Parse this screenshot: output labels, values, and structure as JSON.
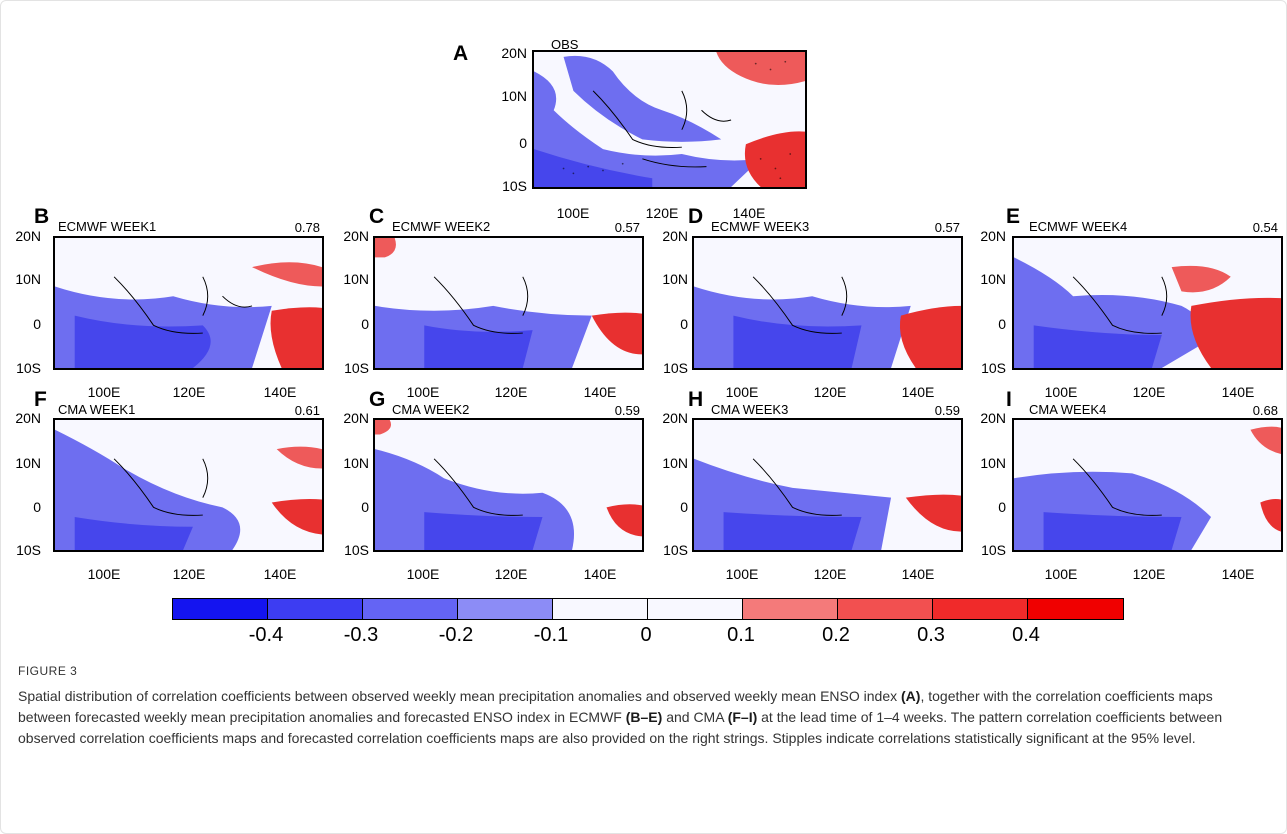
{
  "figure": {
    "label": "FIGURE 3",
    "caption": {
      "p1": "Spatial distribution of correlation coefficients between observed weekly mean precipitation anomalies and observed weekly mean ENSO index ",
      "b1": "(A)",
      "p2": ", together with the correlation coefficients maps between forecasted weekly mean precipitation anomalies and forecasted ENSO index in ECMWF ",
      "b2": "(B–E)",
      "p3": " and CMA ",
      "b3": "(F–I)",
      "p4": " at the lead time of 1–4 weeks. The pattern correlation coefficients between observed correlation coefficients maps and forecasted correlation coefficients maps are also provided on the right strings. Stipples indicate correlations statistically significant at the 95% level."
    }
  },
  "panels": [
    {
      "letter": "A",
      "title": "OBS",
      "value": ""
    },
    {
      "letter": "B",
      "title": "ECMWF WEEK1",
      "value": "0.78"
    },
    {
      "letter": "C",
      "title": "ECMWF WEEK2",
      "value": "0.57"
    },
    {
      "letter": "D",
      "title": "ECMWF WEEK3",
      "value": "0.57"
    },
    {
      "letter": "E",
      "title": "ECMWF WEEK4",
      "value": "0.54"
    },
    {
      "letter": "F",
      "title": "CMA WEEK1",
      "value": "0.61"
    },
    {
      "letter": "G",
      "title": "CMA WEEK2",
      "value": "0.59"
    },
    {
      "letter": "H",
      "title": "CMA WEEK3",
      "value": "0.59"
    },
    {
      "letter": "I",
      "title": "CMA WEEK4",
      "value": "0.68"
    }
  ],
  "axes": {
    "lat_ticks": [
      "20N",
      "10N",
      "0",
      "10S"
    ],
    "lon_ticks": [
      "100E",
      "120E",
      "140E"
    ]
  },
  "colorbar": {
    "labels": [
      "-0.4",
      "-0.3",
      "-0.2",
      "-0.1",
      "0",
      "0.1",
      "0.2",
      "0.3",
      "0.4"
    ],
    "colors": [
      "#1414f0",
      "#3d3df2",
      "#6464f4",
      "#8c8cf6",
      "#f8f8ff",
      "#f8f8ff",
      "#f47a7a",
      "#f25050",
      "#f02a2a",
      "#f00000"
    ]
  },
  "colors": {
    "neg": "#6e6ef0",
    "neg_strong": "#4646ec",
    "pos": "#ee5a5a",
    "pos_strong": "#e83030",
    "land_line": "#000000"
  }
}
